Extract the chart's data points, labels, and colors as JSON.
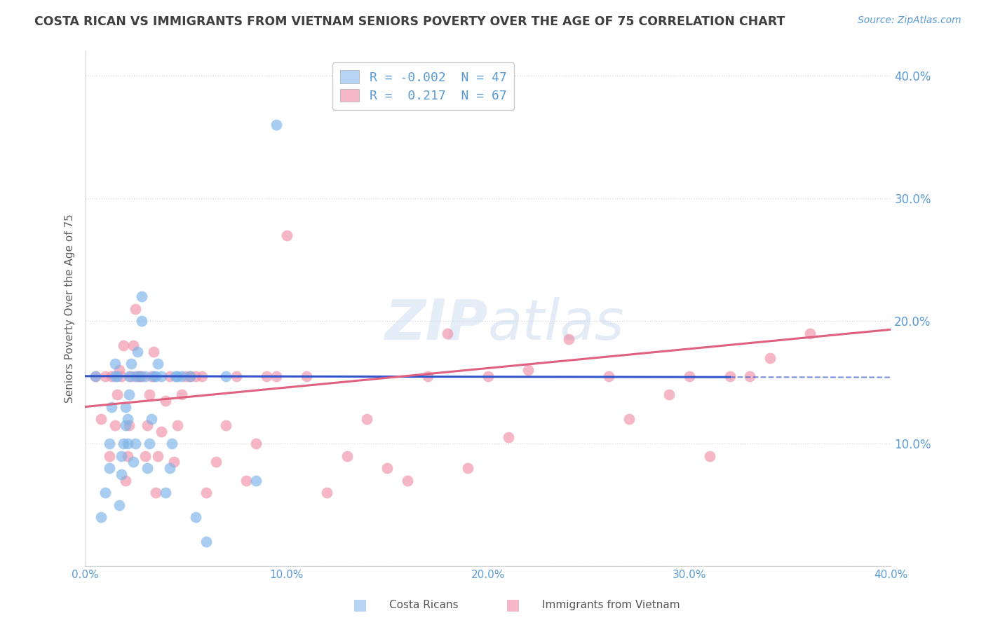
{
  "title": "COSTA RICAN VS IMMIGRANTS FROM VIETNAM SENIORS POVERTY OVER THE AGE OF 75 CORRELATION CHART",
  "source": "Source: ZipAtlas.com",
  "ylabel": "Seniors Poverty Over the Age of 75",
  "watermark": "ZIPatlas",
  "blue_scatter_color": "#7ab3e8",
  "pink_scatter_color": "#f090a8",
  "blue_line_color": "#3355cc",
  "pink_line_color": "#e06080",
  "background_color": "#ffffff",
  "grid_color": "#d8d8d8",
  "title_color": "#404040",
  "axis_tick_color": "#5b9bd5",
  "legend_blue_fill": "#b8d4f5",
  "legend_pink_fill": "#f5b8c8",
  "xlim": [
    0.0,
    0.4
  ],
  "ylim": [
    0.0,
    0.42
  ],
  "xticks": [
    0.0,
    0.1,
    0.2,
    0.3,
    0.4
  ],
  "xtick_labels": [
    "0.0%",
    "10.0%",
    "20.0%",
    "30.0%",
    "40.0%"
  ],
  "yticks": [
    0.0,
    0.1,
    0.2,
    0.3,
    0.4
  ],
  "ytick_labels": [
    "",
    "10.0%",
    "20.0%",
    "30.0%",
    "40.0%"
  ],
  "blue_R": "-0.002",
  "blue_N": "47",
  "pink_R": "0.217",
  "pink_N": "67",
  "costa_rican_x": [
    0.005,
    0.008,
    0.01,
    0.012,
    0.012,
    0.013,
    0.015,
    0.015,
    0.016,
    0.017,
    0.018,
    0.018,
    0.019,
    0.02,
    0.02,
    0.021,
    0.021,
    0.022,
    0.022,
    0.023,
    0.024,
    0.025,
    0.025,
    0.026,
    0.027,
    0.028,
    0.028,
    0.03,
    0.031,
    0.032,
    0.033,
    0.034,
    0.035,
    0.036,
    0.038,
    0.04,
    0.042,
    0.043,
    0.045,
    0.046,
    0.048,
    0.052,
    0.055,
    0.06,
    0.07,
    0.085,
    0.095
  ],
  "costa_rican_y": [
    0.155,
    0.04,
    0.06,
    0.08,
    0.1,
    0.13,
    0.155,
    0.165,
    0.155,
    0.05,
    0.075,
    0.09,
    0.1,
    0.115,
    0.13,
    0.1,
    0.12,
    0.14,
    0.155,
    0.165,
    0.085,
    0.1,
    0.155,
    0.175,
    0.155,
    0.2,
    0.22,
    0.155,
    0.08,
    0.1,
    0.12,
    0.155,
    0.155,
    0.165,
    0.155,
    0.06,
    0.08,
    0.1,
    0.155,
    0.155,
    0.155,
    0.155,
    0.04,
    0.02,
    0.155,
    0.07,
    0.36
  ],
  "vietnam_x": [
    0.005,
    0.008,
    0.01,
    0.012,
    0.013,
    0.015,
    0.016,
    0.017,
    0.018,
    0.019,
    0.02,
    0.021,
    0.022,
    0.023,
    0.024,
    0.025,
    0.026,
    0.027,
    0.028,
    0.03,
    0.031,
    0.032,
    0.033,
    0.034,
    0.035,
    0.036,
    0.038,
    0.04,
    0.042,
    0.044,
    0.046,
    0.048,
    0.05,
    0.052,
    0.055,
    0.058,
    0.06,
    0.065,
    0.07,
    0.075,
    0.08,
    0.085,
    0.09,
    0.095,
    0.1,
    0.11,
    0.12,
    0.13,
    0.14,
    0.15,
    0.16,
    0.17,
    0.18,
    0.19,
    0.2,
    0.21,
    0.22,
    0.24,
    0.26,
    0.27,
    0.29,
    0.3,
    0.31,
    0.32,
    0.33,
    0.34,
    0.36
  ],
  "vietnam_y": [
    0.155,
    0.12,
    0.155,
    0.09,
    0.155,
    0.115,
    0.14,
    0.16,
    0.155,
    0.18,
    0.07,
    0.09,
    0.115,
    0.155,
    0.18,
    0.21,
    0.155,
    0.155,
    0.155,
    0.09,
    0.115,
    0.14,
    0.155,
    0.175,
    0.06,
    0.09,
    0.11,
    0.135,
    0.155,
    0.085,
    0.115,
    0.14,
    0.155,
    0.155,
    0.155,
    0.155,
    0.06,
    0.085,
    0.115,
    0.155,
    0.07,
    0.1,
    0.155,
    0.155,
    0.27,
    0.155,
    0.06,
    0.09,
    0.12,
    0.08,
    0.07,
    0.155,
    0.19,
    0.08,
    0.155,
    0.105,
    0.16,
    0.185,
    0.155,
    0.12,
    0.14,
    0.155,
    0.09,
    0.155,
    0.155,
    0.17,
    0.19
  ]
}
